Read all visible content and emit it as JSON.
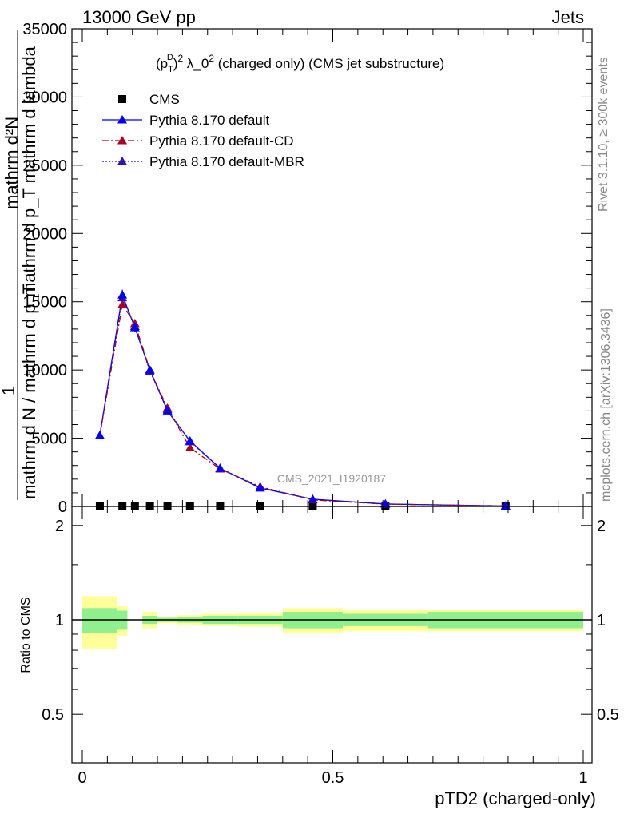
{
  "header": {
    "left": "13000 GeV pp",
    "right": "Jets"
  },
  "side_labels": {
    "rivet": "Rivet 3.1.10, ≥ 300k events",
    "mcplots": "mcplots.cern.ch [arXiv:1306.3436]"
  },
  "watermark": "CMS_2021_I1920187",
  "chart_data": [
    {
      "type": "line",
      "title_parts": {
        "open": "(p",
        "sup": "D",
        "sub": "T",
        "close": ")",
        "sup2": "2",
        "mid": " λ_0",
        "sup3": "2",
        "rest": " (charged only) (CMS jet substructure)"
      },
      "ylabel_parts": {
        "one": "1",
        "num": "mathrm d N / mathrm d p",
        "num_sub": "T",
        "num2": " d mathrm d lambda",
        "den": "mathrm d N",
        "den_pre": "mathrm d",
        "frag": "mathrm d^{2}N"
      },
      "ylabel_lines": [
        "mathrm d²N",
        "mathrm d p_T mathrm d lambda",
        "1",
        "mathrm d N / mathrm d p_T"
      ],
      "xlabel": "pTD2 (charged-only)",
      "xlim": [
        0,
        1
      ],
      "ylim": [
        0,
        35000
      ],
      "y_ticks": [
        "0",
        "5000",
        "10000",
        "15000",
        "20000",
        "25000",
        "30000",
        "35000"
      ],
      "legend_placement": "top-left",
      "series": [
        {
          "name": "CMS",
          "color": "#000000",
          "marker": "square",
          "x": [
            0.035,
            0.08,
            0.105,
            0.135,
            0.17,
            0.215,
            0.275,
            0.355,
            0.46,
            0.605,
            0.845
          ],
          "y": [
            0,
            0,
            0,
            0,
            0,
            0,
            0,
            0,
            0,
            0,
            0
          ]
        },
        {
          "name": "Pythia 8.170 default",
          "color": "#0000ee",
          "marker": "triangle",
          "dash": "solid",
          "x": [
            0.035,
            0.08,
            0.105,
            0.135,
            0.17,
            0.215,
            0.275,
            0.355,
            0.46,
            0.605,
            0.845
          ],
          "y": [
            5200,
            15500,
            13100,
            10000,
            7000,
            4800,
            2800,
            1350,
            530,
            180,
            30
          ]
        },
        {
          "name": "Pythia 8.170 default-CD",
          "color": "#aa0022",
          "marker": "triangle",
          "dash": "dashdot",
          "x": [
            0.035,
            0.08,
            0.105,
            0.135,
            0.17,
            0.215,
            0.275,
            0.355,
            0.46,
            0.605,
            0.845
          ],
          "y": [
            5200,
            14800,
            13400,
            10000,
            7200,
            4300,
            2750,
            1450,
            480,
            170,
            40
          ]
        },
        {
          "name": "Pythia 8.170 default-MBR",
          "color": "#3311aa",
          "marker": "triangle",
          "dash": "dotted",
          "x": [
            0.035,
            0.08,
            0.105,
            0.135,
            0.17,
            0.215,
            0.275,
            0.355,
            0.46,
            0.605,
            0.845
          ],
          "y": [
            5200,
            15300,
            13200,
            9900,
            7100,
            4750,
            2800,
            1400,
            520,
            180,
            35
          ]
        }
      ]
    },
    {
      "type": "area",
      "ylabel": "Ratio to CMS",
      "xlim": [
        0,
        1
      ],
      "ylim": [
        0.35,
        2.3
      ],
      "y_scale": "log",
      "y_ticks": [
        "0.5",
        "1",
        "2"
      ],
      "x_ticks": [
        "0",
        "0.5",
        "1"
      ],
      "reference_line": 1,
      "bins": [
        0,
        0.07,
        0.09,
        0.12,
        0.15,
        0.19,
        0.24,
        0.31,
        0.4,
        0.52,
        0.69,
        1.0
      ],
      "stat_band_half": [
        0.09,
        0.07,
        0.0,
        0.03,
        0.015,
        0.02,
        0.03,
        0.03,
        0.06,
        0.045,
        0.06
      ],
      "total_band_half": [
        0.19,
        0.11,
        0.0,
        0.06,
        0.025,
        0.035,
        0.045,
        0.05,
        0.09,
        0.08,
        0.08
      ],
      "band_colors": {
        "stat": "#90f090",
        "total": "#ffff99"
      }
    }
  ]
}
